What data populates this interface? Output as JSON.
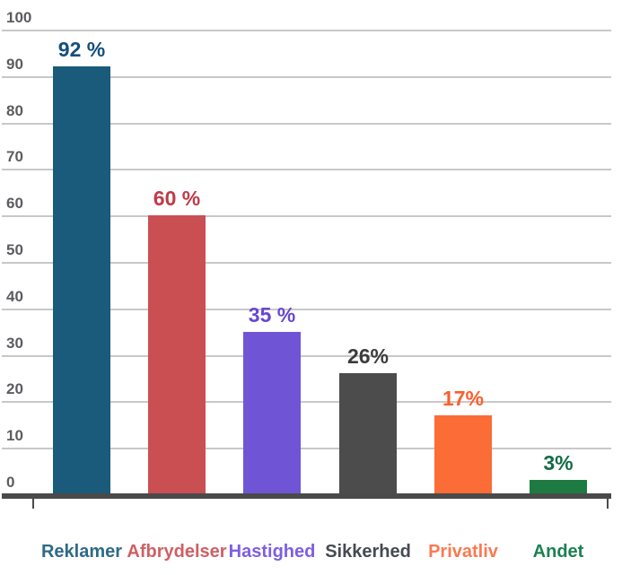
{
  "chart_data": {
    "type": "bar",
    "title": "",
    "xlabel": "",
    "ylabel": "",
    "categories": [
      "Reklamer",
      "Afbrydelser",
      "Hastighed",
      "Sikkerhed",
      "Privatliv",
      "Andet"
    ],
    "values": [
      92,
      60,
      35,
      26,
      17,
      3
    ],
    "value_labels": [
      "92 %",
      "60 %",
      "35 %",
      "26%",
      "17%",
      "3%"
    ],
    "series": [
      {
        "name": "Reklamer",
        "value": 92,
        "label": "92 %",
        "bar_color": "#1a5a7a",
        "label_color": "#134f7c",
        "category_color": "#2e6a88"
      },
      {
        "name": "Afbrydelser",
        "value": 60,
        "label": "60 %",
        "bar_color": "#c94f52",
        "label_color": "#c03a49",
        "category_color": "#d05f64"
      },
      {
        "name": "Hastighed",
        "value": 35,
        "label": "35 %",
        "bar_color": "#6f55d6",
        "label_color": "#6747d2",
        "category_color": "#7e5ee2"
      },
      {
        "name": "Sikkerhed",
        "value": 26,
        "label": "26%",
        "bar_color": "#4c4c4c",
        "label_color": "#3c3c3c",
        "category_color": "#454a54"
      },
      {
        "name": "Privatliv",
        "value": 17,
        "label": "17%",
        "bar_color": "#fb6c37",
        "label_color": "#fd5e2b",
        "category_color": "#fa7a52"
      },
      {
        "name": "Andet",
        "value": 3,
        "label": "3%",
        "bar_color": "#1d7b42",
        "label_color": "#146b44",
        "category_color": "#1c8152"
      }
    ],
    "ylim": [
      0,
      100
    ],
    "y_ticks": [
      0,
      10,
      20,
      30,
      40,
      50,
      60,
      70,
      80,
      90,
      100
    ],
    "grid": true,
    "legend_position": "none"
  },
  "axis_style": {
    "gridline_color": "#c8c8c8",
    "axis_color": "#4a4a4a",
    "tick_label_color": "#5b5c60",
    "background": "#ffffff"
  }
}
